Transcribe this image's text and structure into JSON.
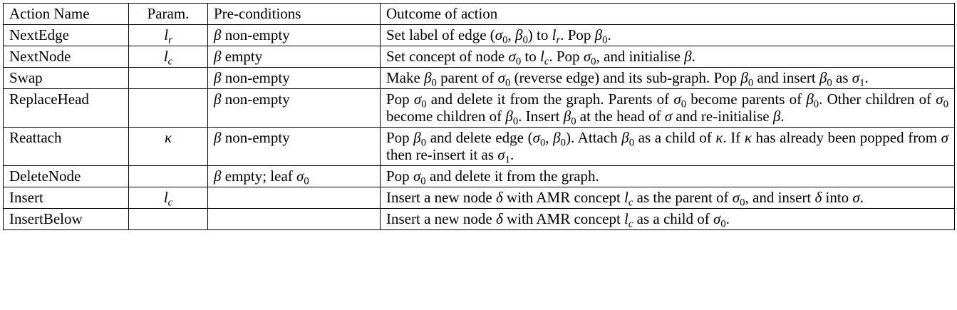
{
  "table": {
    "headers": {
      "action": "Action Name",
      "param": "Param.",
      "pre": "Pre-conditions",
      "outcome": "Outcome of action"
    },
    "rows": [
      {
        "action": "NextEdge",
        "param": "l_r",
        "pre": "β non-empty",
        "outcome": "Set label of edge (σ0, β0) to l_r. Pop β0."
      },
      {
        "action": "NextNode",
        "param": "l_c",
        "pre": "β empty",
        "outcome": "Set concept of node σ0 to l_c. Pop σ0, and initialise β."
      },
      {
        "action": "Swap",
        "param": "",
        "pre": "β non-empty",
        "outcome": "Make β0 parent of σ0 (reverse edge) and its sub-graph. Pop β0 and insert β0 as σ1."
      },
      {
        "action": "ReplaceHead",
        "param": "",
        "pre": "β non-empty",
        "outcome": "Pop σ0 and delete it from the graph. Parents of σ0 become parents of β0. Other children of σ0 become children of β0. Insert β0 at the head of σ and re-initialise β."
      },
      {
        "action": "Reattach",
        "param": "κ",
        "pre": "β non-empty",
        "outcome": "Pop β0 and delete edge (σ0, β0). Attach β0 as a child of κ. If κ has already been popped from σ then re-insert it as σ1."
      },
      {
        "action": "DeleteNode",
        "param": "",
        "pre": "β empty; leaf σ0",
        "outcome": "Pop σ0 and delete it from the graph."
      },
      {
        "action": "Insert",
        "param": "l_c",
        "pre": "",
        "outcome": "Insert a new node δ with AMR concept l_c as the parent of σ0, and insert δ into σ."
      },
      {
        "action": "InsertBelow",
        "param": "",
        "pre": "",
        "outcome": "Insert a new node δ with AMR concept l_c as a child of σ0."
      }
    ]
  }
}
